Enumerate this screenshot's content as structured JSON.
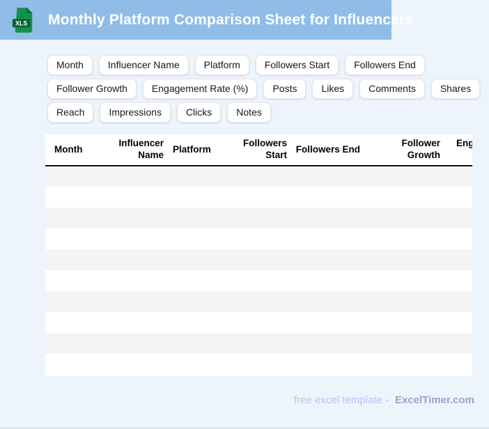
{
  "header": {
    "title": "Monthly Platform Comparison Sheet for Influencers",
    "file_type_label": "XLS"
  },
  "chips": {
    "rows": [
      [
        "Month",
        "Influencer Name",
        "Platform",
        "Followers Start",
        "Followers End"
      ],
      [
        "Follower Growth",
        "Engagement Rate (%)",
        "Posts",
        "Likes",
        "Comments",
        "Shares"
      ],
      [
        "Reach",
        "Impressions",
        "Clicks",
        "Notes"
      ]
    ]
  },
  "table": {
    "columns": [
      {
        "label": "Month",
        "align": "left"
      },
      {
        "label": "Influencer Name",
        "align": "right"
      },
      {
        "label": "Platform",
        "align": "left"
      },
      {
        "label": "Followers Start",
        "align": "right"
      },
      {
        "label": "Followers End",
        "align": "right"
      },
      {
        "label": "Follower Growth",
        "align": "right"
      },
      {
        "label": "Engagement Rate (%)",
        "align": "right"
      }
    ],
    "empty_row_count": 10,
    "rows": []
  },
  "footer": {
    "text": "free excel template -",
    "brand": "ExcelTimer.com"
  },
  "colors": {
    "header_bar": "#90bde8",
    "page_background": "#edf4fc",
    "row_stripe": "#f4f4f4",
    "icon_body_green": "#12914a",
    "icon_band_green": "#0a6232",
    "footer_text": "#b7c3ee",
    "footer_brand": "#98a3ca"
  }
}
